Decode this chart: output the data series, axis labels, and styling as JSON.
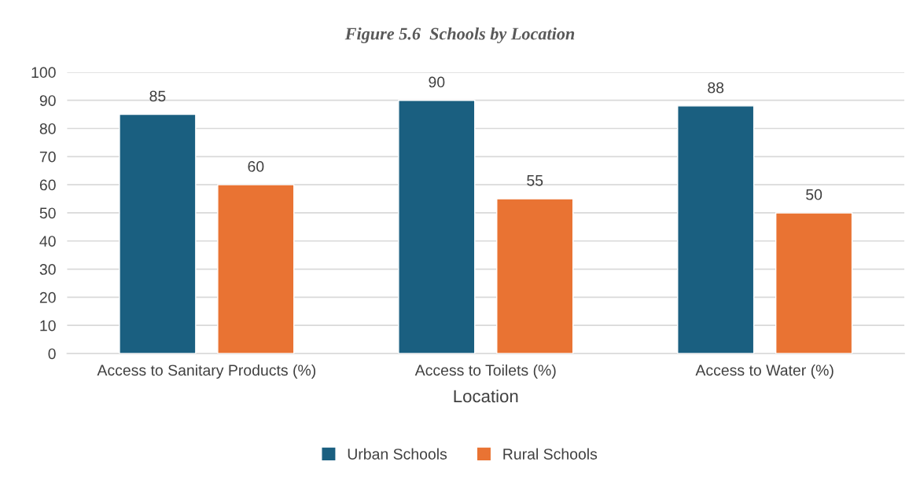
{
  "chart_data": {
    "type": "bar",
    "title": "Figure 5.6  Schools by Location",
    "xlabel": "Location",
    "categories": [
      "Access to Sanitary Products (%)",
      "Access to Toilets (%)",
      "Access to Water (%)"
    ],
    "series": [
      {
        "name": "Urban Schools",
        "color": "#1a5f80",
        "values": [
          85,
          90,
          88
        ]
      },
      {
        "name": "Rural Schools",
        "color": "#e97333",
        "values": [
          60,
          55,
          50
        ]
      }
    ],
    "ylim": [
      0,
      100
    ],
    "yticks": [
      0,
      10,
      20,
      30,
      40,
      50,
      60,
      70,
      80,
      90,
      100
    ],
    "grid": "y",
    "legend": "bottom",
    "data_labels": true
  }
}
